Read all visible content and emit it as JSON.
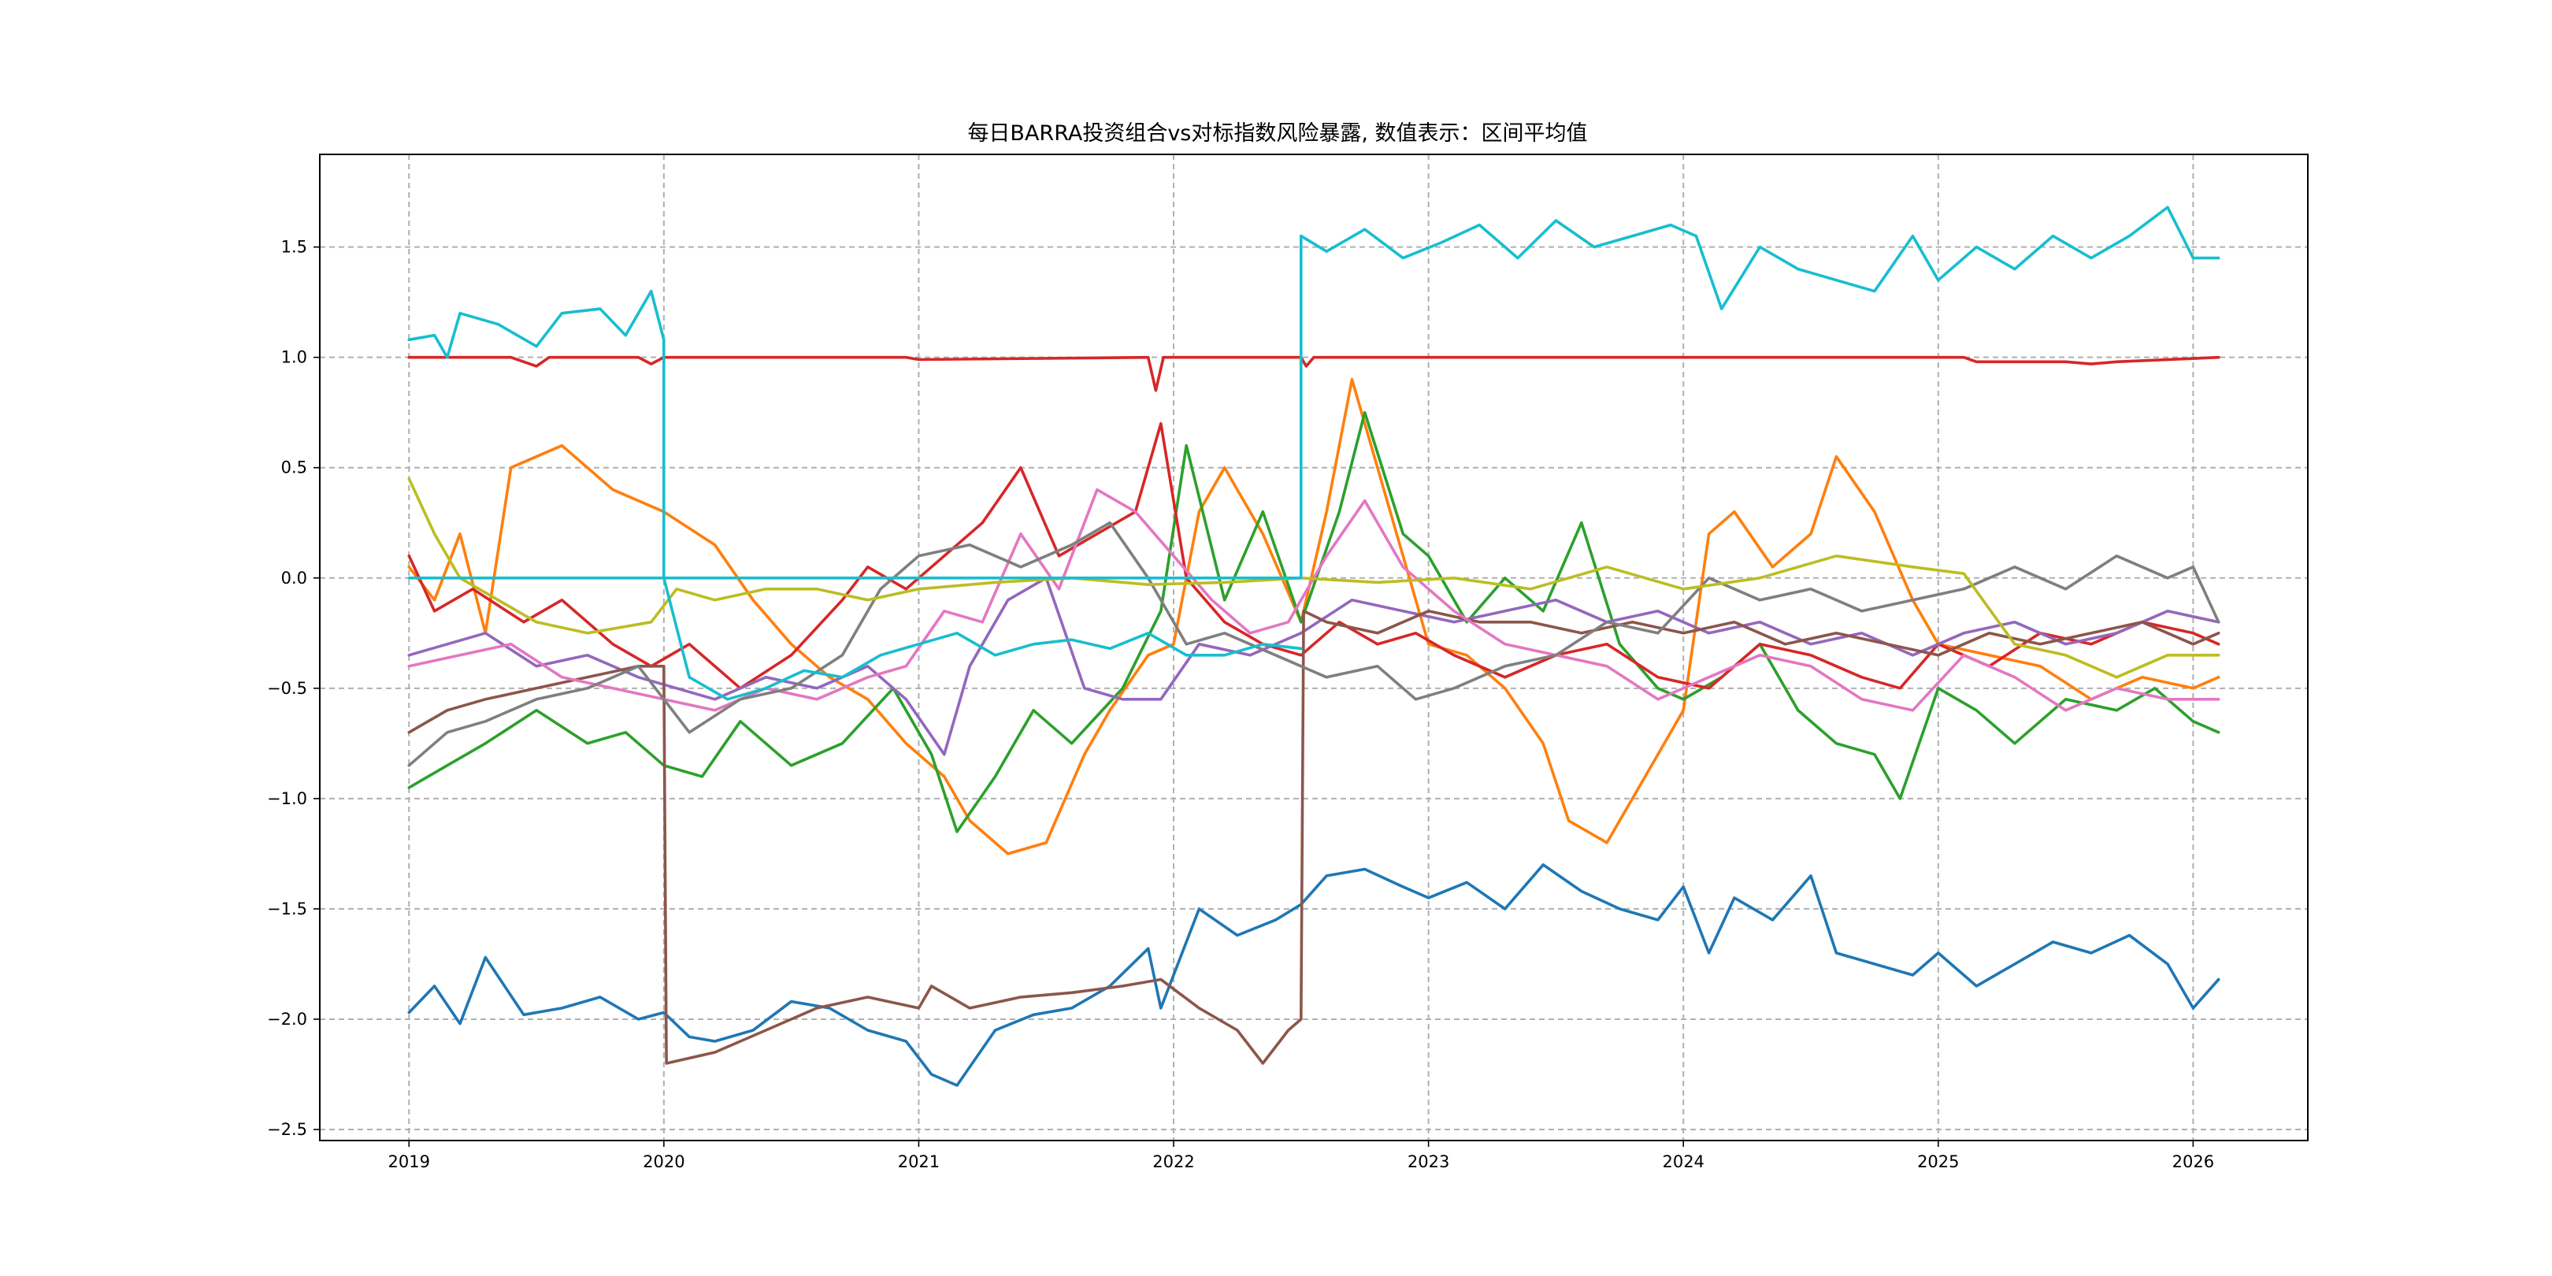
{
  "chart_data": {
    "type": "line",
    "title": "每日BARRA投资组合vs对标指数风险暴露, 数值表示：区间平均值",
    "xlabel": "",
    "ylabel": "",
    "xlim": [
      2018.65,
      2026.45
    ],
    "ylim": [
      -2.55,
      1.92
    ],
    "x_ticks": [
      2019,
      2020,
      2021,
      2022,
      2023,
      2024,
      2025,
      2026
    ],
    "x_tick_labels": [
      "2019",
      "2020",
      "2021",
      "2022",
      "2023",
      "2024",
      "2025",
      "2026"
    ],
    "y_ticks": [
      -2.5,
      -2.0,
      -1.5,
      -1.0,
      -0.5,
      0.0,
      0.5,
      1.0,
      1.5
    ],
    "y_tick_labels": [
      "−2.5",
      "−2.0",
      "−1.5",
      "−1.0",
      "−0.5",
      "0.0",
      "0.5",
      "1.0",
      "1.5"
    ],
    "grid": true,
    "legend": "none",
    "series": [
      {
        "name": "series-1",
        "color": "#1f77b4",
        "x": [
          2019.0,
          2019.1,
          2019.2,
          2019.3,
          2019.45,
          2019.6,
          2019.75,
          2019.9,
          2020.0,
          2020.1,
          2020.2,
          2020.35,
          2020.5,
          2020.65,
          2020.8,
          2020.95,
          2021.05,
          2021.15,
          2021.3,
          2021.45,
          2021.6,
          2021.75,
          2021.9,
          2021.95,
          2022.1,
          2022.25,
          2022.4,
          2022.5,
          2022.6,
          2022.75,
          2022.9,
          2023.0,
          2023.15,
          2023.3,
          2023.45,
          2023.6,
          2023.75,
          2023.9,
          2024.0,
          2024.1,
          2024.2,
          2024.35,
          2024.5,
          2024.6,
          2024.75,
          2024.9,
          2025.0,
          2025.15,
          2025.3,
          2025.45,
          2025.6,
          2025.75,
          2025.9,
          2026.0,
          2026.1
        ],
        "y": [
          -1.97,
          -1.85,
          -2.02,
          -1.72,
          -1.98,
          -1.95,
          -1.9,
          -2.0,
          -1.97,
          -2.08,
          -2.1,
          -2.05,
          -1.92,
          -1.95,
          -2.05,
          -2.1,
          -2.25,
          -2.3,
          -2.05,
          -1.98,
          -1.95,
          -1.85,
          -1.68,
          -1.95,
          -1.5,
          -1.62,
          -1.55,
          -1.48,
          -1.35,
          -1.32,
          -1.4,
          -1.45,
          -1.38,
          -1.5,
          -1.3,
          -1.42,
          -1.5,
          -1.55,
          -1.4,
          -1.7,
          -1.45,
          -1.55,
          -1.35,
          -1.7,
          -1.75,
          -1.8,
          -1.7,
          -1.85,
          -1.75,
          -1.65,
          -1.7,
          -1.62,
          -1.75,
          -1.95,
          -1.82
        ]
      },
      {
        "name": "series-2",
        "color": "#ff7f0e",
        "x": [
          2019.0,
          2019.1,
          2019.2,
          2019.3,
          2019.4,
          2019.6,
          2019.8,
          2020.0,
          2020.2,
          2020.35,
          2020.5,
          2020.65,
          2020.8,
          2020.95,
          2021.1,
          2021.2,
          2021.35,
          2021.5,
          2021.65,
          2021.75,
          2021.9,
          2022.0,
          2022.1,
          2022.2,
          2022.35,
          2022.5,
          2022.6,
          2022.7,
          2022.8,
          2022.9,
          2023.0,
          2023.15,
          2023.3,
          2023.45,
          2023.55,
          2023.7,
          2023.85,
          2024.0,
          2024.1,
          2024.2,
          2024.35,
          2024.5,
          2024.6,
          2024.75,
          2024.9,
          2025.0,
          2025.2,
          2025.4,
          2025.6,
          2025.8,
          2026.0,
          2026.1
        ],
        "y": [
          0.05,
          -0.1,
          0.2,
          -0.25,
          0.5,
          0.6,
          0.4,
          0.3,
          0.15,
          -0.1,
          -0.3,
          -0.45,
          -0.55,
          -0.75,
          -0.9,
          -1.1,
          -1.25,
          -1.2,
          -0.8,
          -0.6,
          -0.35,
          -0.3,
          0.3,
          0.5,
          0.2,
          -0.2,
          0.3,
          0.9,
          0.5,
          0.1,
          -0.3,
          -0.35,
          -0.5,
          -0.75,
          -1.1,
          -1.2,
          -0.9,
          -0.6,
          0.2,
          0.3,
          0.05,
          0.2,
          0.55,
          0.3,
          -0.1,
          -0.3,
          -0.35,
          -0.4,
          -0.55,
          -0.45,
          -0.5,
          -0.45
        ]
      },
      {
        "name": "series-3",
        "color": "#2ca02c",
        "x": [
          2019.0,
          2019.15,
          2019.3,
          2019.5,
          2019.7,
          2019.85,
          2020.0,
          2020.15,
          2020.3,
          2020.5,
          2020.7,
          2020.9,
          2021.05,
          2021.15,
          2021.3,
          2021.45,
          2021.6,
          2021.8,
          2021.95,
          2022.05,
          2022.2,
          2022.35,
          2022.5,
          2022.65,
          2022.75,
          2022.9,
          2023.0,
          2023.15,
          2023.3,
          2023.45,
          2023.6,
          2023.75,
          2023.9,
          2024.0,
          2024.15,
          2024.3,
          2024.45,
          2024.6,
          2024.75,
          2024.85,
          2025.0,
          2025.15,
          2025.3,
          2025.5,
          2025.7,
          2025.85,
          2026.0,
          2026.1
        ],
        "y": [
          -0.95,
          -0.85,
          -0.75,
          -0.6,
          -0.75,
          -0.7,
          -0.85,
          -0.9,
          -0.65,
          -0.85,
          -0.75,
          -0.5,
          -0.8,
          -1.15,
          -0.9,
          -0.6,
          -0.75,
          -0.5,
          -0.15,
          0.6,
          -0.1,
          0.3,
          -0.2,
          0.3,
          0.75,
          0.2,
          0.1,
          -0.2,
          0.0,
          -0.15,
          0.25,
          -0.3,
          -0.5,
          -0.55,
          -0.45,
          -0.3,
          -0.6,
          -0.75,
          -0.8,
          -1.0,
          -0.5,
          -0.6,
          -0.75,
          -0.55,
          -0.6,
          -0.5,
          -0.65,
          -0.7
        ]
      },
      {
        "name": "series-4",
        "color": "#d62728",
        "x": [
          2019.0,
          2019.05,
          2019.4,
          2019.5,
          2019.55,
          2019.9,
          2019.95,
          2020.0,
          2020.5,
          2020.95,
          2021.0,
          2021.9,
          2021.93,
          2021.96,
          2022.0,
          2022.5,
          2022.52,
          2022.55,
          2025.1,
          2025.15,
          2025.5,
          2025.6,
          2025.7,
          2026.1
        ],
        "y": [
          1.0,
          1.0,
          1.0,
          0.96,
          1.0,
          1.0,
          0.97,
          1.0,
          1.0,
          1.0,
          0.99,
          1.0,
          0.85,
          1.0,
          1.0,
          1.0,
          0.96,
          1.0,
          1.0,
          0.98,
          0.98,
          0.97,
          0.98,
          1.0
        ]
      },
      {
        "name": "series-5",
        "color": "#d62728",
        "x": [
          2019.0,
          2019.1,
          2019.25,
          2019.45,
          2019.6,
          2019.8,
          2019.95,
          2020.1,
          2020.3,
          2020.5,
          2020.7,
          2020.8,
          2020.95,
          2021.1,
          2021.25,
          2021.4,
          2021.55,
          2021.7,
          2021.85,
          2021.95,
          2022.05,
          2022.2,
          2022.35,
          2022.5,
          2022.65,
          2022.8,
          2022.95,
          2023.1,
          2023.3,
          2023.5,
          2023.7,
          2023.9,
          2024.1,
          2024.3,
          2024.5,
          2024.7,
          2024.85,
          2025.0,
          2025.2,
          2025.4,
          2025.6,
          2025.8,
          2026.0,
          2026.1
        ],
        "y": [
          0.1,
          -0.15,
          -0.05,
          -0.2,
          -0.1,
          -0.3,
          -0.4,
          -0.3,
          -0.5,
          -0.35,
          -0.1,
          0.05,
          -0.05,
          0.1,
          0.25,
          0.5,
          0.1,
          0.2,
          0.3,
          0.7,
          0.0,
          -0.2,
          -0.3,
          -0.35,
          -0.2,
          -0.3,
          -0.25,
          -0.35,
          -0.45,
          -0.35,
          -0.3,
          -0.45,
          -0.5,
          -0.3,
          -0.35,
          -0.45,
          -0.5,
          -0.3,
          -0.4,
          -0.25,
          -0.3,
          -0.2,
          -0.25,
          -0.3
        ]
      },
      {
        "name": "series-6",
        "color": "#9467bd",
        "x": [
          2019.0,
          2019.15,
          2019.3,
          2019.5,
          2019.7,
          2019.9,
          2020.05,
          2020.2,
          2020.4,
          2020.6,
          2020.8,
          2020.95,
          2021.1,
          2021.2,
          2021.35,
          2021.5,
          2021.65,
          2021.8,
          2021.95,
          2022.1,
          2022.3,
          2022.5,
          2022.7,
          2022.9,
          2023.1,
          2023.3,
          2023.5,
          2023.7,
          2023.9,
          2024.1,
          2024.3,
          2024.5,
          2024.7,
          2024.9,
          2025.1,
          2025.3,
          2025.5,
          2025.7,
          2025.9,
          2026.1
        ],
        "y": [
          -0.35,
          -0.3,
          -0.25,
          -0.4,
          -0.35,
          -0.45,
          -0.5,
          -0.55,
          -0.45,
          -0.5,
          -0.4,
          -0.55,
          -0.8,
          -0.4,
          -0.1,
          0.0,
          -0.5,
          -0.55,
          -0.55,
          -0.3,
          -0.35,
          -0.25,
          -0.1,
          -0.15,
          -0.2,
          -0.15,
          -0.1,
          -0.2,
          -0.15,
          -0.25,
          -0.2,
          -0.3,
          -0.25,
          -0.35,
          -0.25,
          -0.2,
          -0.3,
          -0.25,
          -0.15,
          -0.2
        ]
      },
      {
        "name": "series-7",
        "color": "#8c564b",
        "x": [
          2019.0,
          2019.15,
          2019.3,
          2019.5,
          2019.7,
          2019.9,
          2020.0,
          2020.01,
          2020.2,
          2020.4,
          2020.6,
          2020.8,
          2021.0,
          2021.05,
          2021.2,
          2021.4,
          2021.6,
          2021.8,
          2021.95,
          2022.1,
          2022.25,
          2022.35,
          2022.45,
          2022.5,
          2022.51,
          2022.6,
          2022.8,
          2023.0,
          2023.2,
          2023.4,
          2023.6,
          2023.8,
          2024.0,
          2024.2,
          2024.4,
          2024.6,
          2024.8,
          2025.0,
          2025.2,
          2025.4,
          2025.6,
          2025.8,
          2026.0,
          2026.1
        ],
        "y": [
          -0.7,
          -0.6,
          -0.55,
          -0.5,
          -0.45,
          -0.4,
          -0.4,
          -2.2,
          -2.15,
          -2.05,
          -1.95,
          -1.9,
          -1.95,
          -1.85,
          -1.95,
          -1.9,
          -1.88,
          -1.85,
          -1.82,
          -1.95,
          -2.05,
          -2.2,
          -2.05,
          -2.0,
          -0.15,
          -0.2,
          -0.25,
          -0.15,
          -0.2,
          -0.2,
          -0.25,
          -0.2,
          -0.25,
          -0.2,
          -0.3,
          -0.25,
          -0.3,
          -0.35,
          -0.25,
          -0.3,
          -0.25,
          -0.2,
          -0.3,
          -0.25
        ]
      },
      {
        "name": "series-8",
        "color": "#e377c2",
        "x": [
          2019.0,
          2019.2,
          2019.4,
          2019.6,
          2019.8,
          2020.0,
          2020.2,
          2020.4,
          2020.6,
          2020.8,
          2020.95,
          2021.1,
          2021.25,
          2021.4,
          2021.55,
          2021.7,
          2021.85,
          2022.0,
          2022.15,
          2022.3,
          2022.45,
          2022.6,
          2022.75,
          2022.9,
          2023.1,
          2023.3,
          2023.5,
          2023.7,
          2023.9,
          2024.1,
          2024.3,
          2024.5,
          2024.7,
          2024.9,
          2025.1,
          2025.3,
          2025.5,
          2025.7,
          2025.9,
          2026.1
        ],
        "y": [
          -0.4,
          -0.35,
          -0.3,
          -0.45,
          -0.5,
          -0.55,
          -0.6,
          -0.5,
          -0.55,
          -0.45,
          -0.4,
          -0.15,
          -0.2,
          0.2,
          -0.05,
          0.4,
          0.3,
          0.1,
          -0.1,
          -0.25,
          -0.2,
          0.1,
          0.35,
          0.05,
          -0.15,
          -0.3,
          -0.35,
          -0.4,
          -0.55,
          -0.45,
          -0.35,
          -0.4,
          -0.55,
          -0.6,
          -0.35,
          -0.45,
          -0.6,
          -0.5,
          -0.55,
          -0.55
        ]
      },
      {
        "name": "series-9",
        "color": "#7f7f7f",
        "x": [
          2019.0,
          2019.15,
          2019.3,
          2019.5,
          2019.7,
          2019.9,
          2020.1,
          2020.3,
          2020.5,
          2020.7,
          2020.85,
          2021.0,
          2021.2,
          2021.4,
          2021.6,
          2021.75,
          2021.9,
          2022.05,
          2022.2,
          2022.4,
          2022.6,
          2022.8,
          2022.95,
          2023.1,
          2023.3,
          2023.5,
          2023.7,
          2023.9,
          2024.1,
          2024.3,
          2024.5,
          2024.7,
          2024.9,
          2025.1,
          2025.3,
          2025.5,
          2025.7,
          2025.9,
          2026.0,
          2026.1
        ],
        "y": [
          -0.85,
          -0.7,
          -0.65,
          -0.55,
          -0.5,
          -0.4,
          -0.7,
          -0.55,
          -0.5,
          -0.35,
          -0.05,
          0.1,
          0.15,
          0.05,
          0.15,
          0.25,
          0.0,
          -0.3,
          -0.25,
          -0.35,
          -0.45,
          -0.4,
          -0.55,
          -0.5,
          -0.4,
          -0.35,
          -0.2,
          -0.25,
          0.0,
          -0.1,
          -0.05,
          -0.15,
          -0.1,
          -0.05,
          0.05,
          -0.05,
          0.1,
          0.0,
          0.05,
          -0.2
        ]
      },
      {
        "name": "series-10",
        "color": "#bcbd22",
        "x": [
          2019.0,
          2019.1,
          2019.2,
          2019.35,
          2019.5,
          2019.7,
          2019.95,
          2020.05,
          2020.2,
          2020.4,
          2020.6,
          2020.8,
          2021.0,
          2021.3,
          2021.6,
          2021.9,
          2022.2,
          2022.5,
          2022.8,
          2023.1,
          2023.4,
          2023.7,
          2024.0,
          2024.3,
          2024.6,
          2024.9,
          2025.1,
          2025.3,
          2025.5,
          2025.7,
          2025.9,
          2026.1
        ],
        "y": [
          0.45,
          0.2,
          0.0,
          -0.1,
          -0.2,
          -0.25,
          -0.2,
          -0.05,
          -0.1,
          -0.05,
          -0.05,
          -0.1,
          -0.05,
          -0.02,
          0.0,
          -0.03,
          -0.02,
          0.0,
          -0.02,
          0.0,
          -0.05,
          0.05,
          -0.05,
          0.0,
          0.1,
          0.05,
          0.02,
          -0.3,
          -0.35,
          -0.45,
          -0.35,
          -0.35
        ]
      },
      {
        "name": "series-11",
        "color": "#17becf",
        "x": [
          2019.0,
          2019.1,
          2019.15,
          2019.2,
          2019.35,
          2019.5,
          2019.6,
          2019.75,
          2019.85,
          2019.95,
          2020.0,
          2020.0,
          2022.5,
          2022.5,
          2022.6,
          2022.75,
          2022.9,
          2023.05,
          2023.2,
          2023.35,
          2023.5,
          2023.65,
          2023.8,
          2023.95,
          2024.05,
          2024.15,
          2024.3,
          2024.45,
          2024.6,
          2024.75,
          2024.9,
          2025.0,
          2025.15,
          2025.3,
          2025.45,
          2025.6,
          2025.75,
          2025.9,
          2026.0,
          2026.1
        ],
        "y": [
          1.08,
          1.1,
          1.0,
          1.2,
          1.15,
          1.05,
          1.2,
          1.22,
          1.1,
          1.3,
          1.08,
          0.0,
          0.0,
          1.55,
          1.48,
          1.58,
          1.45,
          1.52,
          1.6,
          1.45,
          1.62,
          1.5,
          1.55,
          1.6,
          1.55,
          1.22,
          1.5,
          1.4,
          1.35,
          1.3,
          1.55,
          1.35,
          1.5,
          1.4,
          1.55,
          1.45,
          1.55,
          1.68,
          1.45,
          1.45
        ]
      },
      {
        "name": "series-12",
        "color": "#17becf",
        "x": [
          2019.0,
          2019.2,
          2019.4,
          2019.6,
          2019.8,
          2020.0,
          2020.1,
          2020.25,
          2020.4,
          2020.55,
          2020.7,
          2020.85,
          2021.0,
          2021.15,
          2021.3,
          2021.45,
          2021.6,
          2021.75,
          2021.9,
          2022.05,
          2022.2,
          2022.35,
          2022.5
        ],
        "y": [
          0.0,
          0.0,
          0.0,
          0.0,
          0.0,
          0.0,
          -0.45,
          -0.55,
          -0.5,
          -0.42,
          -0.45,
          -0.35,
          -0.3,
          -0.25,
          -0.35,
          -0.3,
          -0.28,
          -0.32,
          -0.25,
          -0.35,
          -0.35,
          -0.3,
          -0.32
        ]
      }
    ]
  }
}
